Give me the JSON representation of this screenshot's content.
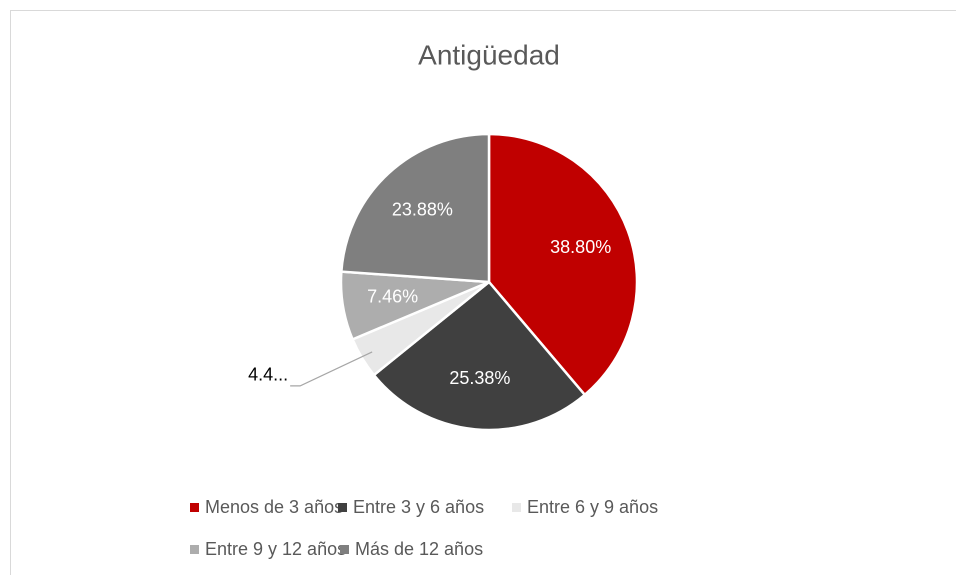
{
  "chart_data": {
    "type": "pie",
    "title": "Antigüedad",
    "categories": [
      "Menos de 3 años",
      "Entre 3 y 6 años",
      "Entre 6 y 9 años",
      "Entre 9 y 12 años",
      "Más de 12 años"
    ],
    "values": [
      38.8,
      25.38,
      4.48,
      7.46,
      23.88
    ],
    "value_labels": [
      "38.80%",
      "25.38%",
      "4.4...",
      "7.46%",
      "23.88%"
    ],
    "colors": [
      "#c00000",
      "#404040",
      "#e8e8e8",
      "#adadad",
      "#7f7f7f"
    ],
    "legend": "bottom"
  }
}
